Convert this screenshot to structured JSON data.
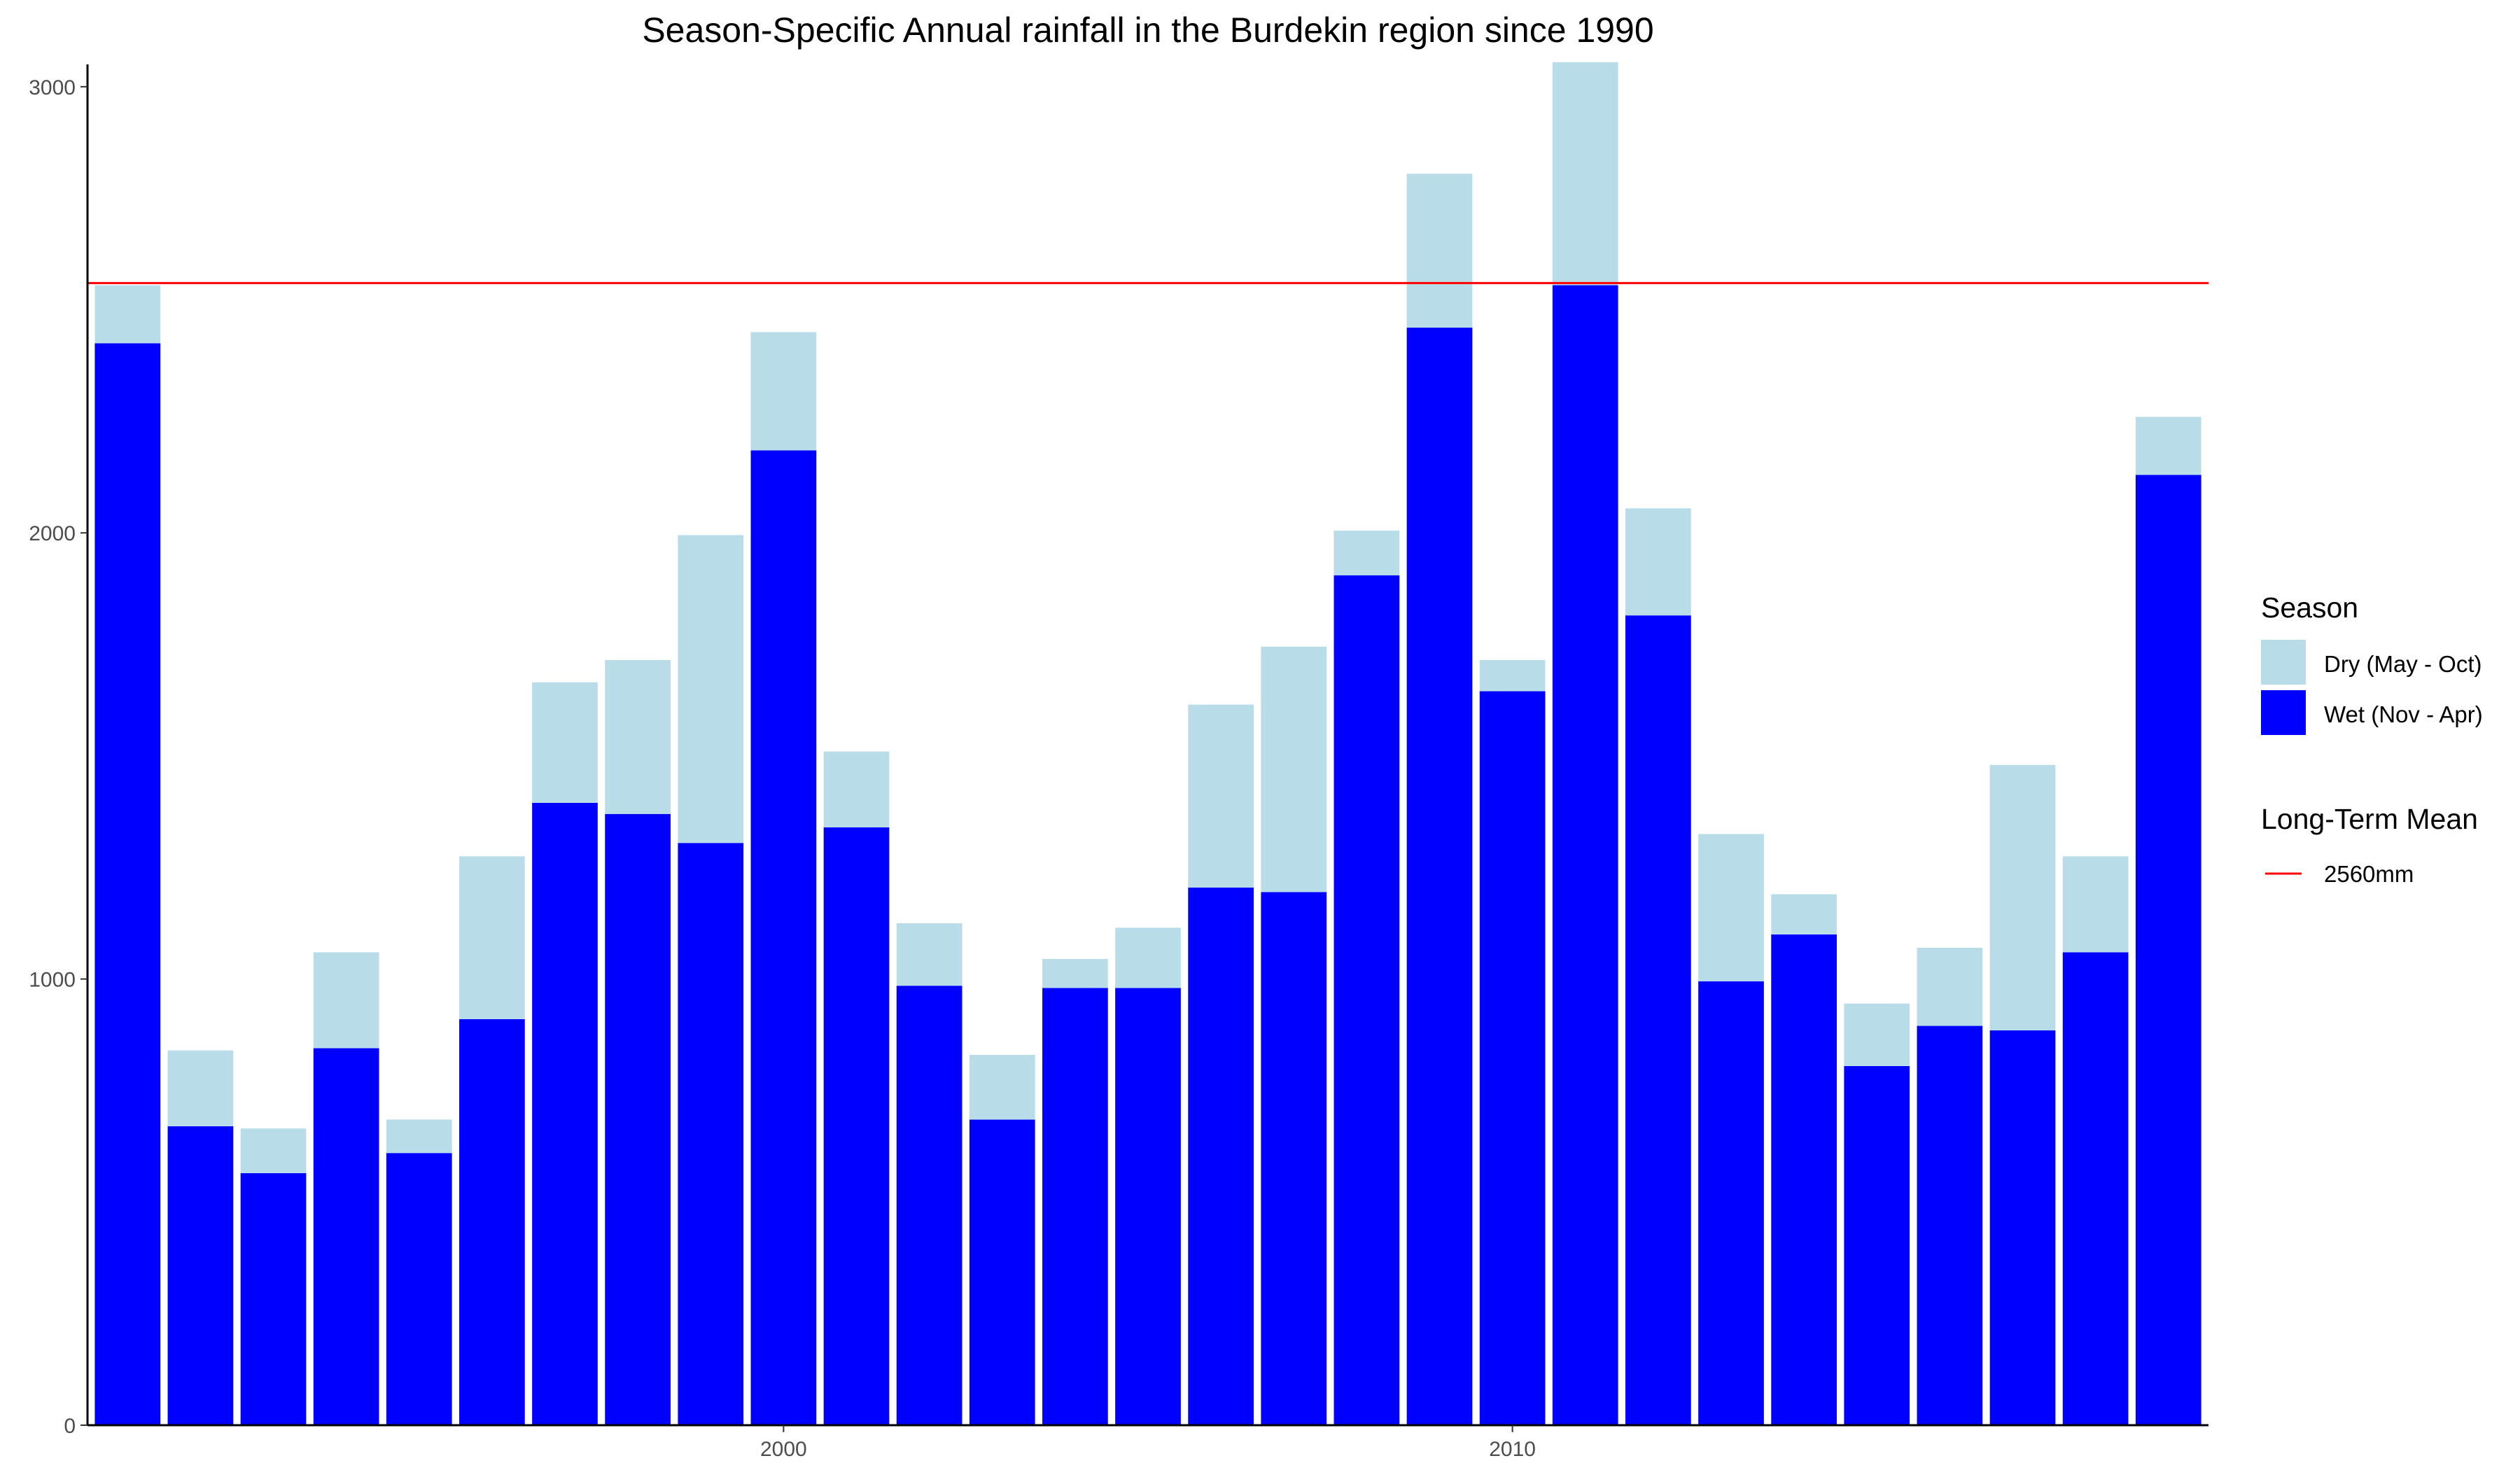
{
  "chart_data": {
    "type": "bar",
    "stacked": true,
    "title": "Season-Specific Annual rainfall in the Burdekin region since 1990",
    "xlabel": "",
    "ylabel": "",
    "x": [
      1991,
      1992,
      1993,
      1994,
      1995,
      1996,
      1997,
      1998,
      1999,
      2000,
      2001,
      2002,
      2003,
      2004,
      2005,
      2006,
      2007,
      2008,
      2009,
      2010,
      2011,
      2012,
      2013,
      2014,
      2015,
      2016,
      2017,
      2018,
      2019
    ],
    "xlim": [
      1990.45,
      2019.55
    ],
    "ylim": [
      0,
      3050
    ],
    "x_ticks": [
      2000,
      2010
    ],
    "x_tick_labels": [
      "2000",
      "2010"
    ],
    "y_ticks": [
      0,
      1000,
      2000,
      3000
    ],
    "y_tick_labels": [
      "0",
      "1000",
      "2000",
      "3000"
    ],
    "series": [
      {
        "name": "Wet (Nov - Apr)",
        "color": "#0000ff",
        "values": [
          2425,
          670,
          565,
          845,
          610,
          910,
          1395,
          1370,
          1305,
          2185,
          1340,
          985,
          685,
          980,
          980,
          1205,
          1195,
          1905,
          2460,
          1645,
          2555,
          1815,
          995,
          1100,
          805,
          895,
          885,
          1060,
          2130
        ]
      },
      {
        "name": "Dry (May - Oct)",
        "color": "#b8dde9",
        "values": [
          130,
          170,
          100,
          215,
          75,
          365,
          270,
          345,
          690,
          265,
          170,
          140,
          145,
          65,
          135,
          410,
          550,
          100,
          345,
          70,
          500,
          240,
          330,
          90,
          140,
          175,
          595,
          215,
          130
        ]
      }
    ],
    "hline": {
      "value": 2560,
      "color": "#ff0000",
      "label": "2560mm"
    },
    "grid": false,
    "legend_position": "right",
    "legend": {
      "season_title": "Season",
      "season_entries": [
        "Dry (May - Oct)",
        "Wet (Nov - Apr)"
      ],
      "mean_title": "Long-Term Mean",
      "mean_entries": [
        "2560mm"
      ]
    }
  }
}
